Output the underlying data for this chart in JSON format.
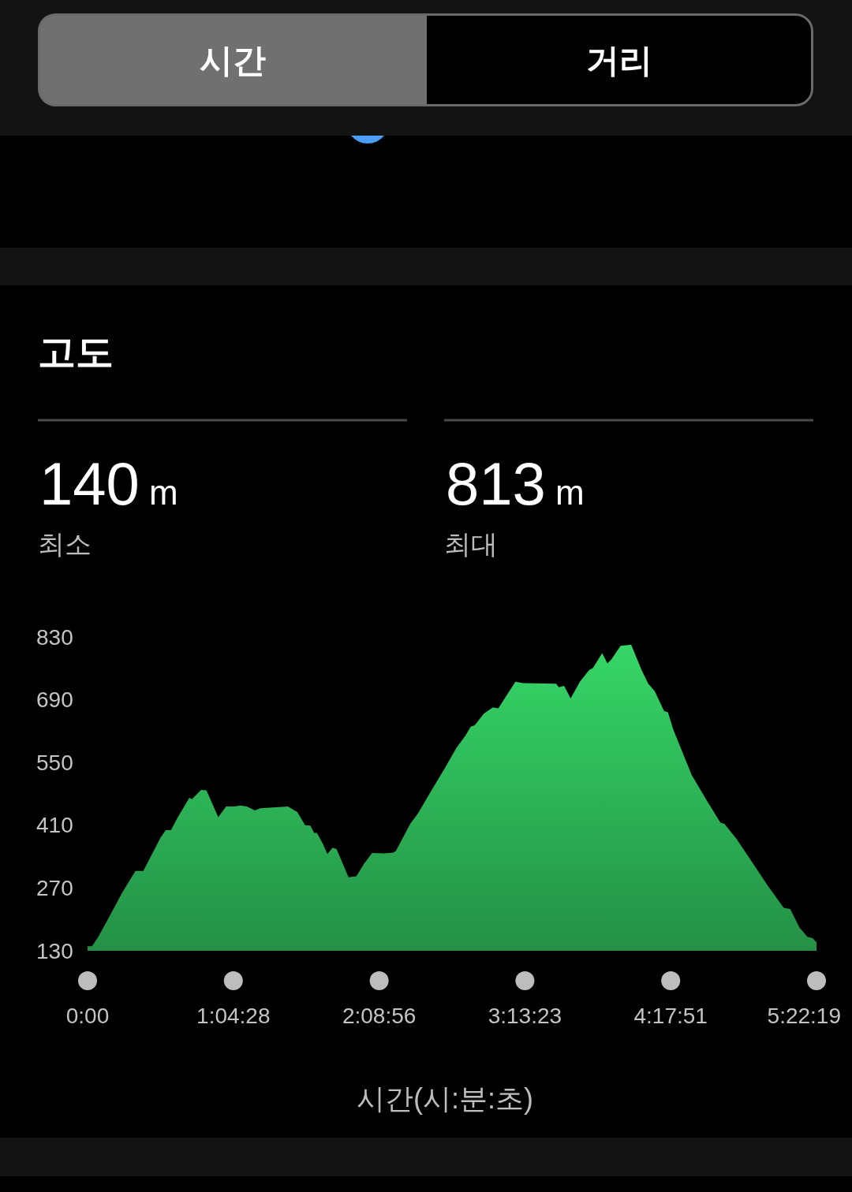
{
  "chart_data": {
    "type": "area",
    "title": "고도",
    "xlabel": "시간(시:분:초)",
    "annotations": [
      "시간",
      "거리",
      "140 m",
      "최소",
      "813 m",
      "최대"
    ],
    "x": [
      0,
      0.033,
      0.081,
      0.169,
      0.256,
      0.353,
      0.411,
      0.537,
      0.576,
      0.615,
      0.663,
      0.75,
      0.769,
      0.837,
      0.876,
      0.963,
      1.021,
      1.08,
      1.128,
      1.174,
      1.233,
      1.273,
      1.477,
      1.525,
      1.545,
      1.603,
      1.641,
      1.67,
      1.69,
      1.738,
      1.767,
      1.806,
      1.835,
      1.923,
      1.981,
      2.039,
      2.097,
      2.184,
      2.252,
      2.271,
      2.378,
      2.436,
      2.533,
      2.63,
      2.717,
      2.785,
      2.824,
      2.853,
      2.92,
      2.988,
      3.027,
      3.153,
      3.211,
      3.453,
      3.473,
      3.512,
      3.56,
      3.628,
      3.696,
      3.725,
      3.792,
      3.831,
      3.86,
      3.928,
      4.006,
      4.083,
      4.132,
      4.18,
      4.248,
      4.277,
      4.316,
      4.452,
      4.568,
      4.664,
      4.693,
      4.781,
      4.897,
      5.013,
      5.13,
      5.178,
      5.246,
      5.304,
      5.343,
      5.3719
    ],
    "series": [
      {
        "color": "#2db457",
        "values": [
          140,
          140,
          162,
          211,
          260,
          308,
          308,
          382,
          399,
          399,
          427,
          471,
          468,
          489,
          488,
          428,
          452,
          452,
          454,
          452,
          443,
          448,
          452,
          443,
          440,
          410,
          409,
          393,
          393,
          366,
          346,
          360,
          357,
          294,
          296,
          325,
          348,
          347,
          349,
          352,
          413,
          437,
          487,
          536,
          582,
          610,
          630,
          633,
          659,
          673,
          671,
          730,
          727,
          726,
          718,
          721,
          693,
          730,
          756,
          761,
          794,
          771,
          780,
          810,
          813,
          756,
          726,
          709,
          665,
          662,
          624,
          522,
          463,
          416,
          413,
          380,
          328,
          275,
          226,
          223,
          182,
          161,
          158,
          149
        ]
      }
    ],
    "xlim": [
      0,
      5.3719
    ],
    "xticks": [
      {
        "value": 0,
        "label": "0:00"
      },
      {
        "value": 1.0744,
        "label": "1:04:28"
      },
      {
        "value": 2.1489,
        "label": "2:08:56"
      },
      {
        "value": 3.2231,
        "label": "3:13:23"
      },
      {
        "value": 4.2975,
        "label": "4:17:51"
      },
      {
        "value": 5.3719,
        "label": "5:22:19"
      }
    ],
    "ylim": [
      130,
      830
    ],
    "yticks": [
      130,
      270,
      410,
      550,
      690,
      830
    ]
  }
}
